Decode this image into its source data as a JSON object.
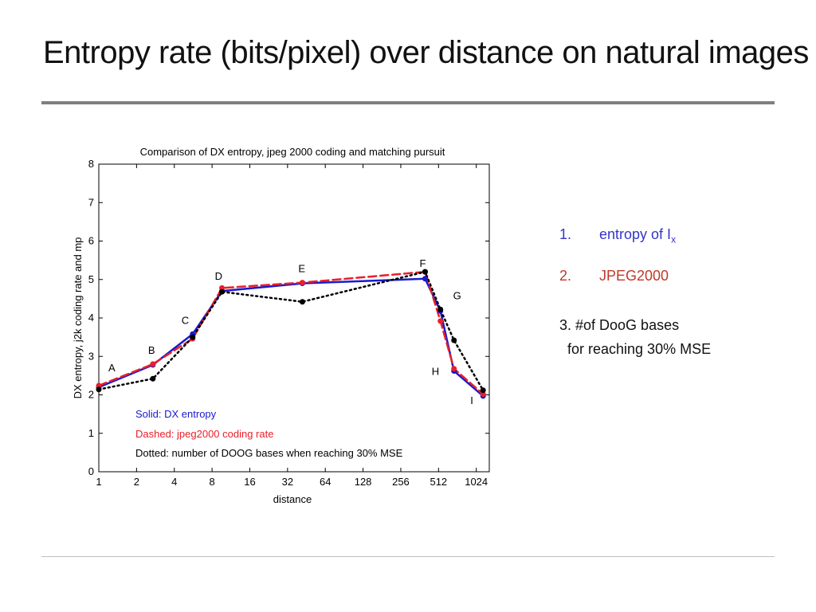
{
  "slide": {
    "title": "Entropy rate (bits/pixel) over distance on natural images"
  },
  "notes": {
    "item1": {
      "num": "1.",
      "text": "entropy of I",
      "sub": "x",
      "color": "#3333cc"
    },
    "item2": {
      "num": "2.",
      "text": "JPEG2000",
      "color": "#c0392b"
    },
    "item3": {
      "line1": "3.  #of DooG bases",
      "line2": "for reaching 30% MSE"
    }
  },
  "chart_data": {
    "type": "line",
    "title": "Comparison of DX entropy, jpeg 2000 coding and matching pursuit",
    "xlabel": "distance",
    "ylabel": "DX entropy, j2k coding rate and mp",
    "x_scale": "log2",
    "xlim": [
      1,
      1300
    ],
    "ylim": [
      0,
      8
    ],
    "x_ticks": [
      1,
      2,
      4,
      8,
      16,
      32,
      64,
      128,
      256,
      512,
      1024
    ],
    "x_tick_labels": [
      "1",
      "2",
      "4",
      "8",
      "16",
      "32",
      "64",
      "128",
      "256",
      "512",
      "1024"
    ],
    "y_ticks": [
      0,
      1,
      2,
      3,
      4,
      5,
      6,
      7,
      8
    ],
    "y_tick_labels": [
      "0",
      "1",
      "2",
      "3",
      "4",
      "5",
      "6",
      "7",
      "8"
    ],
    "point_labels": [
      "A",
      "B",
      "C",
      "D",
      "E",
      "F",
      "G",
      "H",
      "I"
    ],
    "x": [
      1,
      2.7,
      5.6,
      9.6,
      42,
      400,
      530,
      680,
      1160
    ],
    "series": [
      {
        "name": "Solid: DX entropy",
        "style": "solid",
        "color": "#1a1acc",
        "values": [
          2.2,
          2.78,
          3.58,
          4.7,
          4.9,
          5.02,
          4.18,
          2.62,
          1.97
        ]
      },
      {
        "name": "Dashed: jpeg2000 coding rate",
        "style": "dashed",
        "color": "#e8202a",
        "values": [
          2.24,
          2.8,
          3.46,
          4.78,
          4.92,
          5.2,
          3.92,
          2.68,
          2.02
        ]
      },
      {
        "name": "Dotted: number of DOOG bases when reaching 30% MSE",
        "style": "dotted",
        "color": "#000000",
        "values": [
          2.14,
          2.42,
          3.5,
          4.68,
          4.42,
          5.2,
          4.22,
          3.42,
          2.12
        ]
      }
    ]
  }
}
